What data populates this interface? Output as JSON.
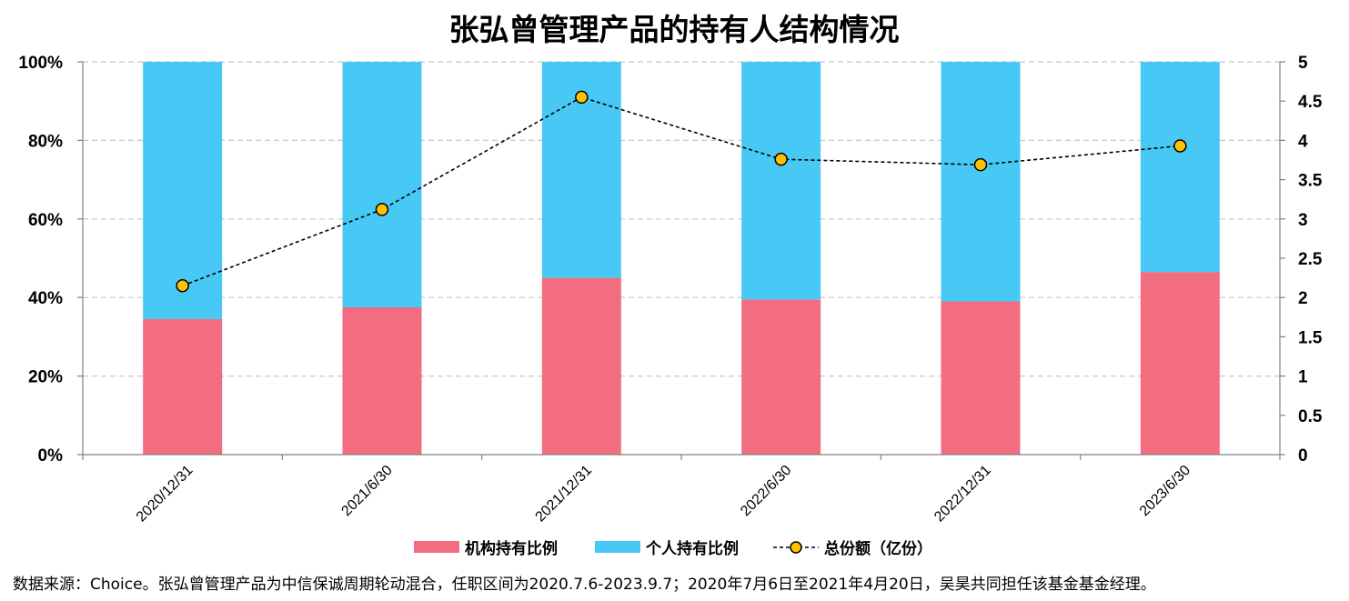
{
  "chart_data": {
    "type": "bar",
    "title": "张弘曾管理产品的持有人结构情况",
    "categories": [
      "2020/12/31",
      "2021/6/30",
      "2021/12/31",
      "2022/6/30",
      "2022/12/31",
      "2023/6/30"
    ],
    "series": [
      {
        "name": "机构持有比例",
        "kind": "stacked-bar",
        "axis": "left",
        "color": "#f36d80",
        "values": [
          34.5,
          37.5,
          45.0,
          39.5,
          39.0,
          46.5
        ]
      },
      {
        "name": "个人持有比例",
        "kind": "stacked-bar",
        "axis": "left",
        "color": "#48c8f4",
        "values": [
          65.5,
          62.5,
          55.0,
          60.5,
          61.0,
          53.5
        ]
      },
      {
        "name": "总份额（亿份）",
        "kind": "line",
        "axis": "right",
        "color": "#000000",
        "marker_color": "#ffc000",
        "values": [
          2.15,
          3.12,
          4.55,
          3.76,
          3.69,
          3.93
        ]
      }
    ],
    "y_left": {
      "ylim": [
        0,
        100
      ],
      "ticks": [
        "0%",
        "20%",
        "40%",
        "60%",
        "80%",
        "100%"
      ],
      "tick_values": [
        0,
        20,
        40,
        60,
        80,
        100
      ]
    },
    "y_right": {
      "ylim": [
        0,
        5
      ],
      "ticks": [
        "0",
        "0.5",
        "1",
        "1.5",
        "2",
        "2.5",
        "3",
        "3.5",
        "4",
        "4.5",
        "5"
      ],
      "tick_values": [
        0,
        0.5,
        1,
        1.5,
        2,
        2.5,
        3,
        3.5,
        4,
        4.5,
        5
      ]
    },
    "grid": true,
    "legend": "bottom"
  },
  "footnote": "数据来源：Choice。张弘曾管理产品为中信保诚周期轮动混合，任职区间为2020.7.6-2023.9.7；2020年7月6日至2021年4月20日，吴昊共同担任该基金基金经理。"
}
